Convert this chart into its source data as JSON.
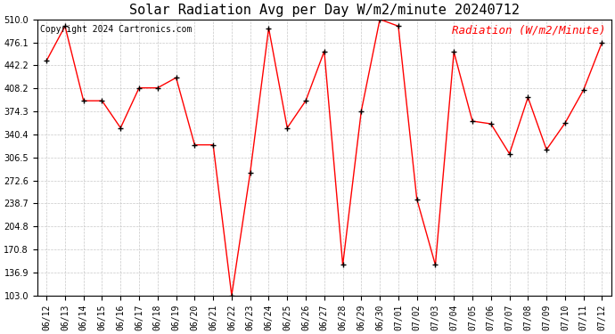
{
  "title": "Solar Radiation Avg per Day W/m2/minute 20240712",
  "copyright": "Copyright 2024 Cartronics.com",
  "legend_label": "Radiation (W/m2/Minute)",
  "dates": [
    "06/12",
    "06/13",
    "06/14",
    "06/15",
    "06/16",
    "06/17",
    "06/18",
    "06/19",
    "06/20",
    "06/21",
    "06/22",
    "06/23",
    "06/24",
    "06/25",
    "06/26",
    "06/27",
    "06/28",
    "06/29",
    "06/30",
    "07/01",
    "07/02",
    "07/03",
    "07/04",
    "07/05",
    "07/06",
    "07/07",
    "07/08",
    "07/09",
    "07/10",
    "07/11",
    "07/12"
  ],
  "values": [
    449.0,
    500.0,
    390.0,
    390.0,
    350.0,
    409.0,
    409.0,
    424.0,
    325.0,
    325.0,
    103.0,
    284.0,
    497.0,
    350.0,
    390.0,
    463.0,
    148.0,
    375.0,
    510.0,
    500.0,
    245.0,
    148.0,
    462.0,
    360.0,
    356.0,
    312.0,
    395.0,
    318.0,
    357.0,
    406.0,
    476.0
  ],
  "ylim_min": 103.0,
  "ylim_max": 510.0,
  "yticks": [
    103.0,
    136.9,
    170.8,
    204.8,
    238.7,
    272.6,
    306.5,
    340.4,
    374.3,
    408.2,
    442.2,
    476.1,
    510.0
  ],
  "line_color": "red",
  "marker_color": "black",
  "bg_color": "#ffffff",
  "grid_color": "#c8c8c8",
  "title_fontsize": 11,
  "copyright_fontsize": 7,
  "legend_fontsize": 9,
  "tick_fontsize": 7,
  "copyright_color": "black",
  "legend_color": "red"
}
